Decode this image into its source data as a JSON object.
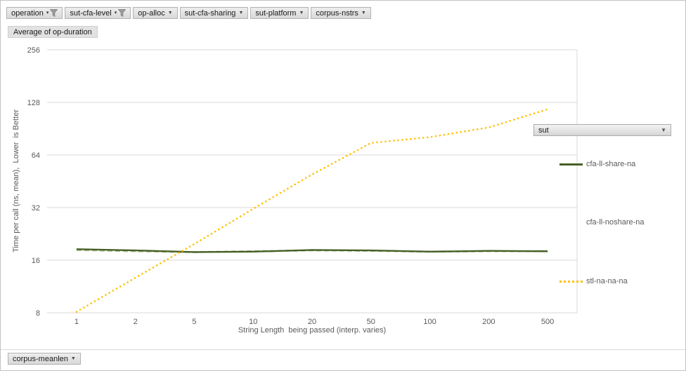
{
  "field_buttons": {
    "top": [
      {
        "label": "operation",
        "filtered": true
      },
      {
        "label": "sut-cfa-level",
        "filtered": true
      },
      {
        "label": "op-alloc",
        "filtered": false
      },
      {
        "label": "sut-cfa-sharing",
        "filtered": false
      },
      {
        "label": "sut-platform",
        "filtered": false
      },
      {
        "label": "corpus-nstrs",
        "filtered": false
      }
    ],
    "value_button": "Average of op-duration",
    "legend_button": "sut",
    "axis_button": "corpus-meanlen"
  },
  "chart_data": {
    "type": "line",
    "x_scale": "category",
    "y_scale": "log2",
    "categories": [
      "1",
      "2",
      "5",
      "10",
      "20",
      "50",
      "100",
      "200",
      "500"
    ],
    "series": [
      {
        "name": "cfa-ll-share-na",
        "color": "#465f25",
        "style": "solid",
        "values": [
          18.5,
          18.2,
          17.8,
          17.9,
          18.3,
          18.2,
          17.9,
          18.1,
          18.0
        ]
      },
      {
        "name": "cfa-ll-noshare-na",
        "color": "#a9bd8d",
        "style": "dashed",
        "values": [
          18.3,
          18.0,
          17.8,
          18.0,
          18.2,
          18.1,
          17.9,
          18.0,
          18.0
        ]
      },
      {
        "name": "stl-na-na-na",
        "color": "#ffc000",
        "style": "dotted",
        "values": [
          8.1,
          12.7,
          19.8,
          31.5,
          49.5,
          75,
          81,
          92,
          117
        ]
      }
    ],
    "title": "",
    "xlabel": "String Length  being passed (interp. varies)",
    "ylabel": "Time per call (ns, mean),  Lower  is Better",
    "yticks": [
      256,
      128,
      64,
      32,
      16,
      8
    ],
    "ylim": [
      8,
      256
    ],
    "grid": true,
    "legend_position": "right"
  },
  "colors": {
    "grid": "#d9d9d9",
    "axis_text": "#595959",
    "accent_yellow": "#ffc000",
    "accent_green": "#465f25"
  }
}
